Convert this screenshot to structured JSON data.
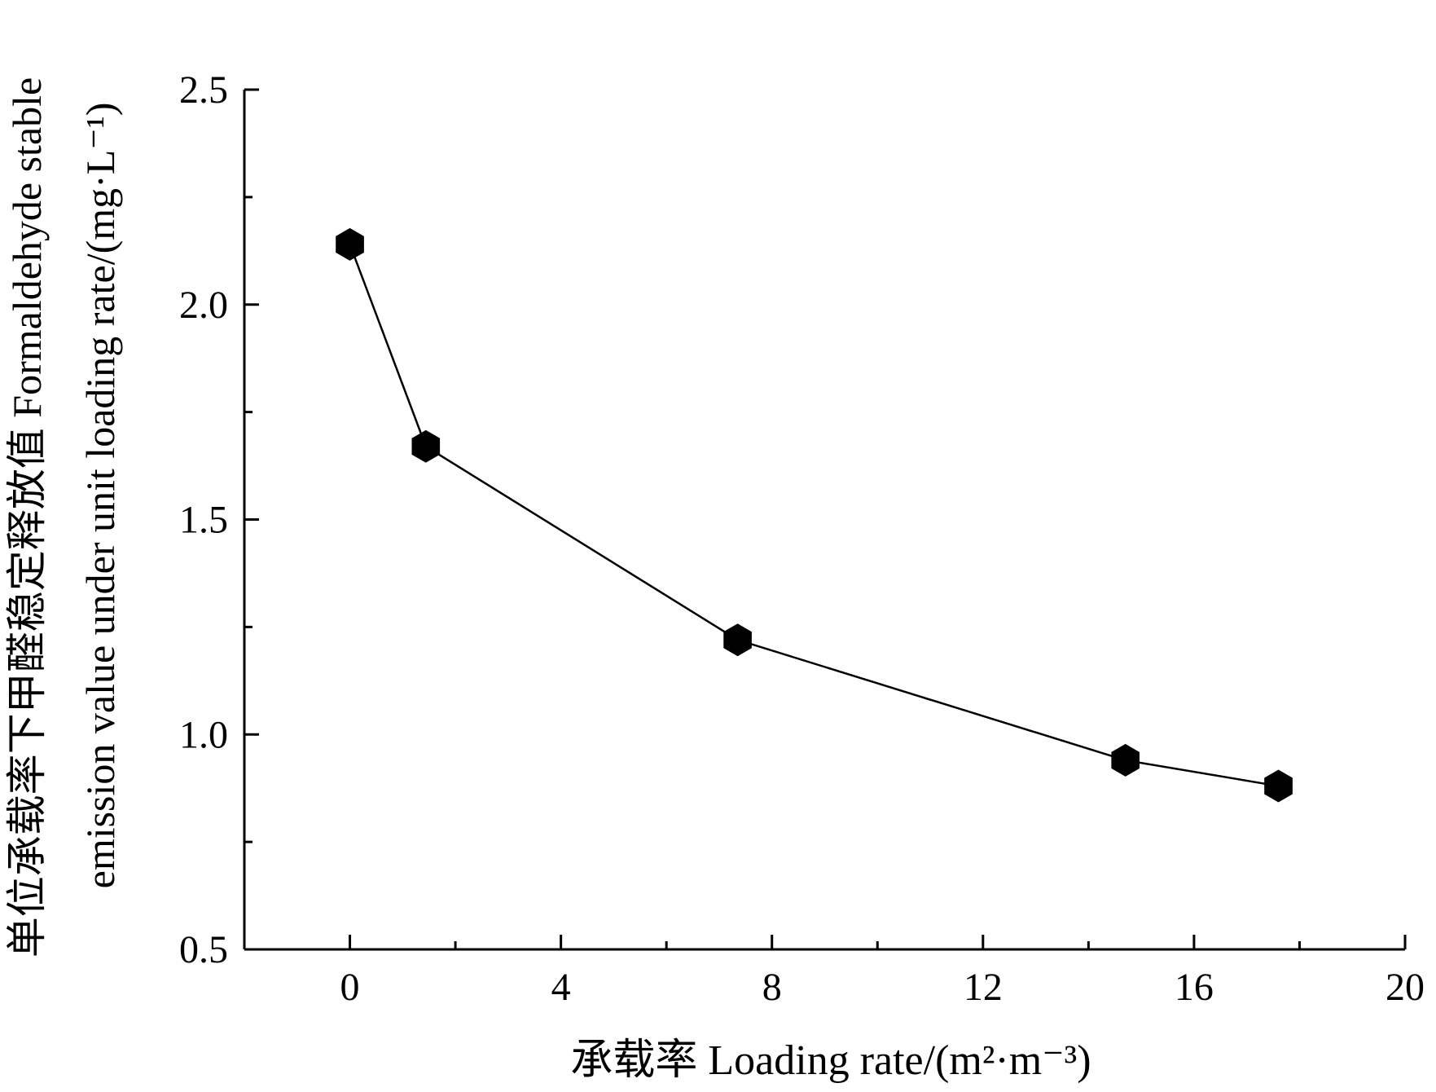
{
  "chart_data": {
    "type": "line",
    "xlabel": "承载率  Loading rate/(m²·m⁻³)",
    "ylabel_line1": "单位承载率下甲醛稳定释放值  Formaldehyde stable",
    "ylabel_line2": "emission value under unit loading rate/(mg·L⁻¹)",
    "xlim": [
      -2,
      20
    ],
    "ylim": [
      0.5,
      2.5
    ],
    "x_ticks": [
      0,
      4,
      8,
      12,
      16,
      20
    ],
    "x_tick_labels": [
      "0",
      "4",
      "8",
      "12",
      "16",
      "20"
    ],
    "x_minor_ticks": [
      2,
      6,
      10,
      14,
      18
    ],
    "y_ticks": [
      0.5,
      1.0,
      1.5,
      2.0,
      2.5
    ],
    "y_tick_labels": [
      "0.5",
      "1.0",
      "1.5",
      "2.0",
      "2.5"
    ],
    "y_minor_ticks": [
      0.75,
      1.25,
      1.75,
      2.25
    ],
    "grid": false,
    "marker": "hexagon",
    "series": [
      {
        "x": [
          0.0,
          1.44,
          7.35,
          14.7,
          17.6
        ],
        "y": [
          2.14,
          1.67,
          1.22,
          0.94,
          0.88
        ]
      }
    ],
    "colors": {
      "line": "#000000",
      "marker": "#000000"
    }
  }
}
